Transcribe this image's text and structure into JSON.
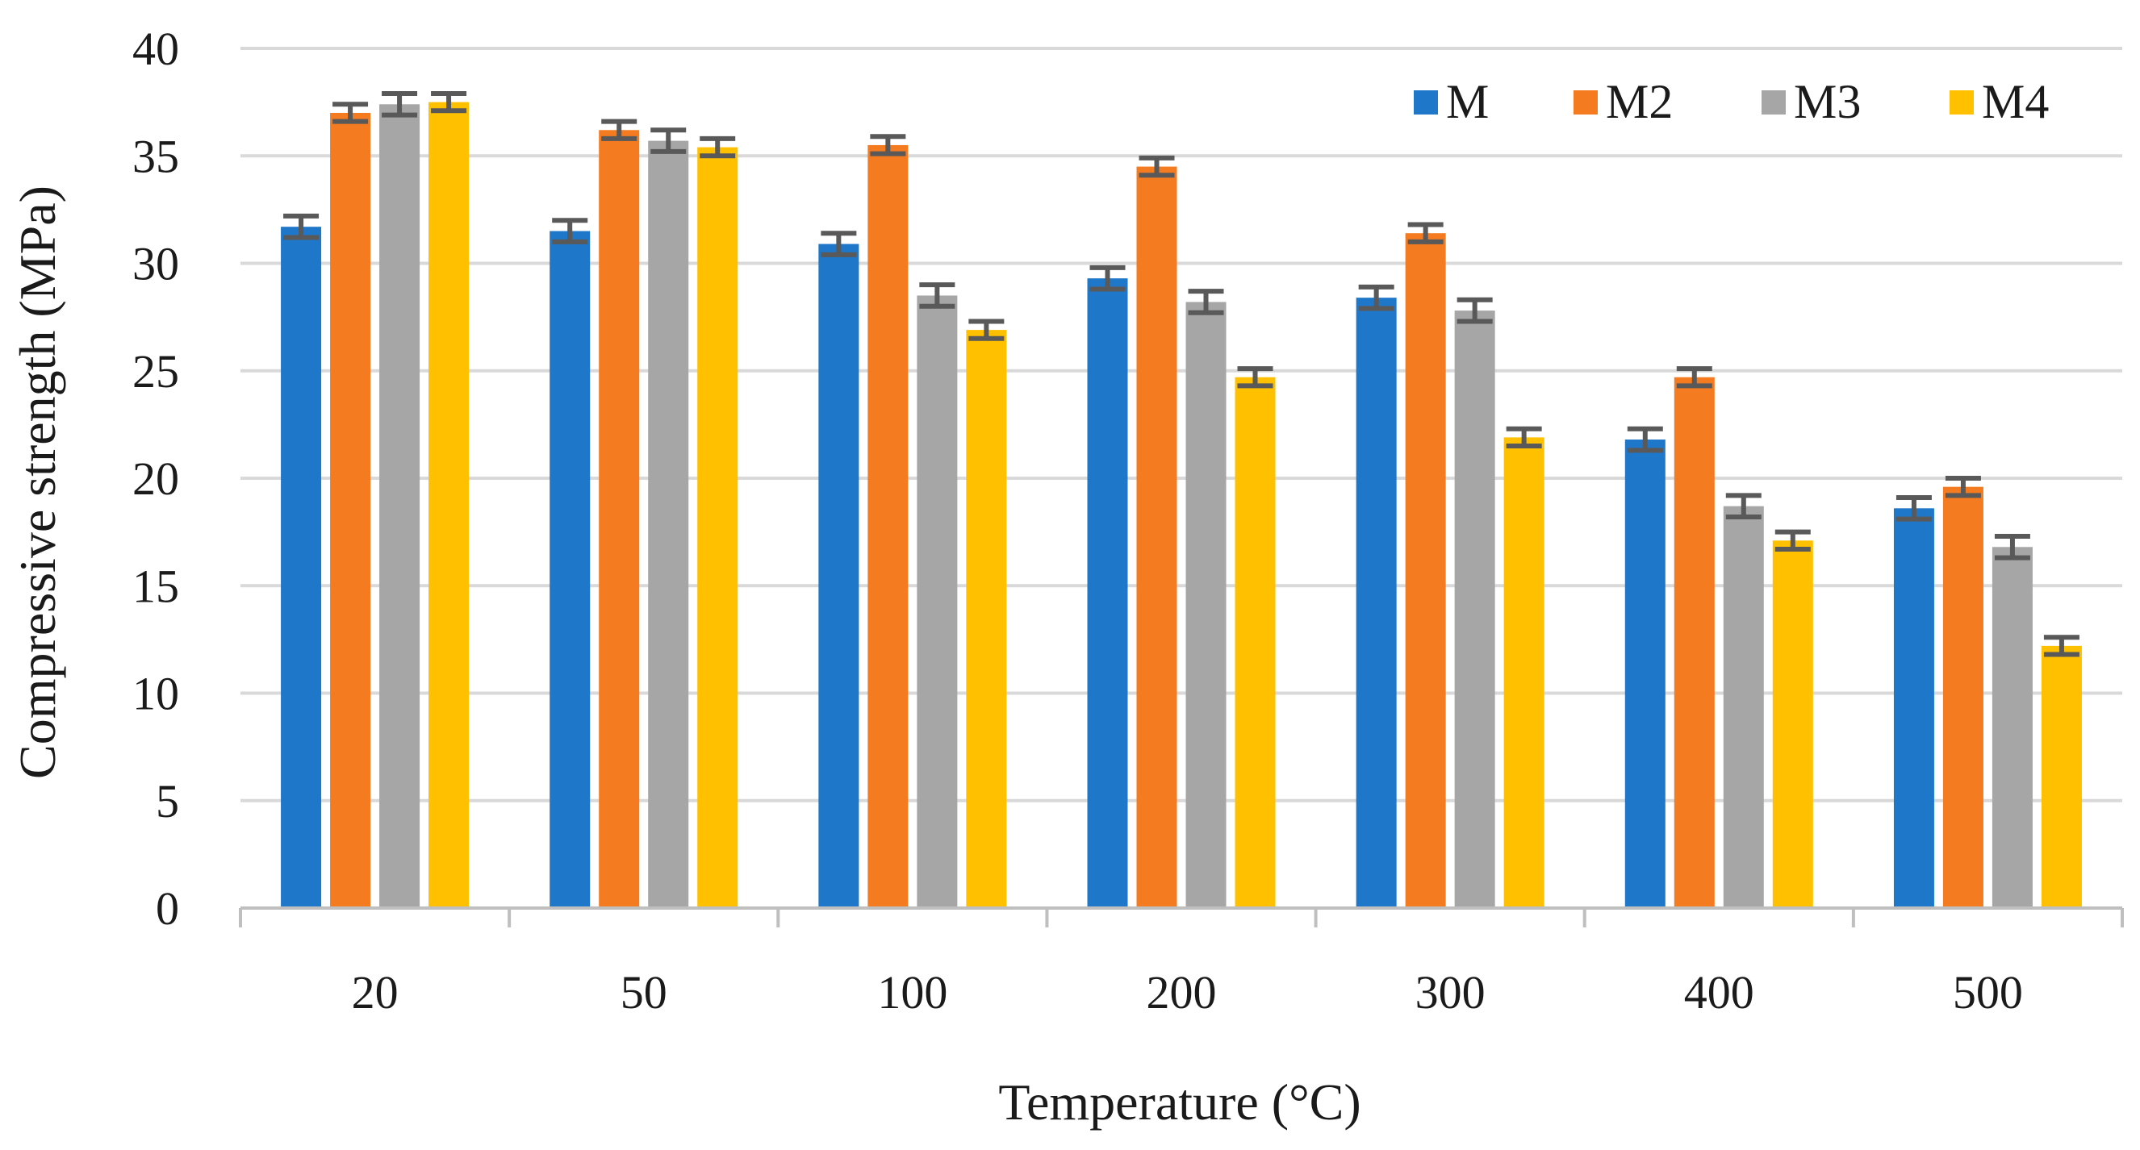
{
  "chart_data": {
    "type": "bar",
    "title": "",
    "xlabel": "Temperature (°C)",
    "ylabel": "Compressive strength (MPa)",
    "ylim": [
      0,
      40
    ],
    "yticks": [
      0,
      5,
      10,
      15,
      20,
      25,
      30,
      35,
      40
    ],
    "categories": [
      "20",
      "50",
      "100",
      "200",
      "300",
      "400",
      "500"
    ],
    "legend_position": "top-right",
    "series": [
      {
        "name": "M",
        "color": "#1f77c9",
        "values": [
          31.7,
          31.5,
          30.9,
          29.3,
          28.4,
          21.8,
          18.6
        ],
        "errors": [
          0.5,
          0.5,
          0.5,
          0.5,
          0.5,
          0.5,
          0.5
        ]
      },
      {
        "name": "M2",
        "color": "#f47b20",
        "values": [
          37.0,
          36.2,
          35.5,
          34.5,
          31.4,
          24.7,
          19.6
        ],
        "errors": [
          0.4,
          0.4,
          0.4,
          0.4,
          0.4,
          0.4,
          0.4
        ]
      },
      {
        "name": "M3",
        "color": "#a6a6a6",
        "values": [
          37.4,
          35.7,
          28.5,
          28.2,
          27.8,
          18.7,
          16.8
        ],
        "errors": [
          0.5,
          0.5,
          0.5,
          0.5,
          0.5,
          0.5,
          0.5
        ]
      },
      {
        "name": "M4",
        "color": "#ffc000",
        "values": [
          37.5,
          35.4,
          26.9,
          24.7,
          21.9,
          17.1,
          12.2
        ],
        "errors": [
          0.4,
          0.4,
          0.4,
          0.4,
          0.4,
          0.4,
          0.4
        ]
      }
    ]
  }
}
